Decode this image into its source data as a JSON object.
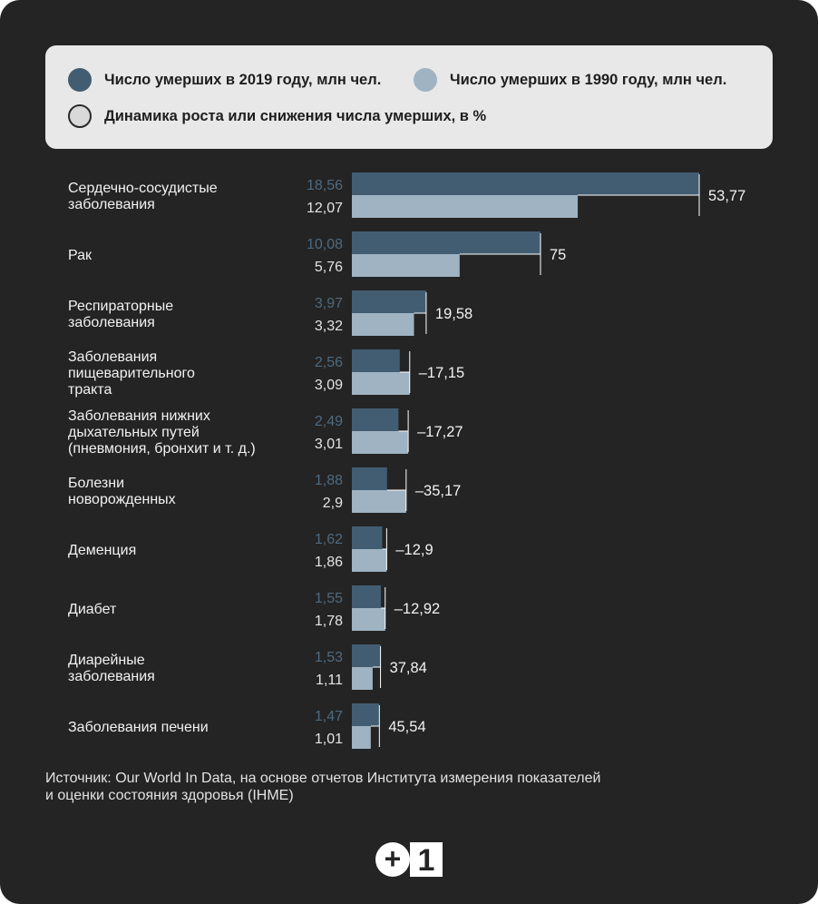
{
  "legend": {
    "series_2019": "Число умерших в 2019 году, млн чел.",
    "series_1990": "Число умерших в 1990 году, млн чел.",
    "growth": "Динамика роста или снижения числа умерших, в %"
  },
  "colors": {
    "bar_2019": "#425d72",
    "bar_1990": "#9fb3c2",
    "label_2019": "#4e6a7f",
    "label_1990": "#e4e4e4",
    "text": "#f2f2f2",
    "background": "#242424"
  },
  "chart_data": {
    "type": "bar",
    "orientation": "horizontal",
    "categories": [
      "Сердечно-сосудистые\nзаболевания",
      "Рак",
      "Респираторные\nзаболевания",
      "Заболевания\nпищеварительного\nтракта",
      "Заболевания нижних\nдыхательных путей\n(пневмония, бронхит и т. д.)",
      "Болезни\nноворожденных",
      "Деменция",
      "Диабет",
      "Диарейные\nзаболевания",
      "Заболевания печени"
    ],
    "series": [
      {
        "name": "Число умерших в 2019 году, млн чел.",
        "values": [
          18.56,
          10.08,
          3.97,
          2.56,
          2.49,
          1.88,
          1.62,
          1.55,
          1.53,
          1.47
        ],
        "labels": [
          "18,56",
          "10,08",
          "3,97",
          "2,56",
          "2,49",
          "1,88",
          "1,62",
          "1,55",
          "1,53",
          "1,47"
        ]
      },
      {
        "name": "Число умерших в 1990 году, млн чел.",
        "values": [
          12.07,
          5.76,
          3.32,
          3.09,
          3.01,
          2.9,
          1.86,
          1.78,
          1.11,
          1.01
        ],
        "labels": [
          "12,07",
          "5,76",
          "3,32",
          "3,09",
          "3,01",
          "2,9",
          "1,86",
          "1,78",
          "1,11",
          "1,01"
        ]
      }
    ],
    "change_pct": [
      53.77,
      75,
      19.58,
      -17.15,
      -17.27,
      -35.17,
      -12.9,
      -12.92,
      37.84,
      45.54
    ],
    "change_labels": [
      "53,77",
      "75",
      "19,58",
      "–17,15",
      "–17,27",
      "–35,17",
      "–12,9",
      "–12,92",
      "37,84",
      "45,54"
    ],
    "xlim": [
      0,
      18.56
    ]
  },
  "source": {
    "line1": "Источник: Our World In Data, на основе отчетов Института измерения показателей",
    "line2": "и оценки состояния здоровья (IHME)"
  },
  "logo": {
    "plus": "+",
    "one": "1"
  }
}
